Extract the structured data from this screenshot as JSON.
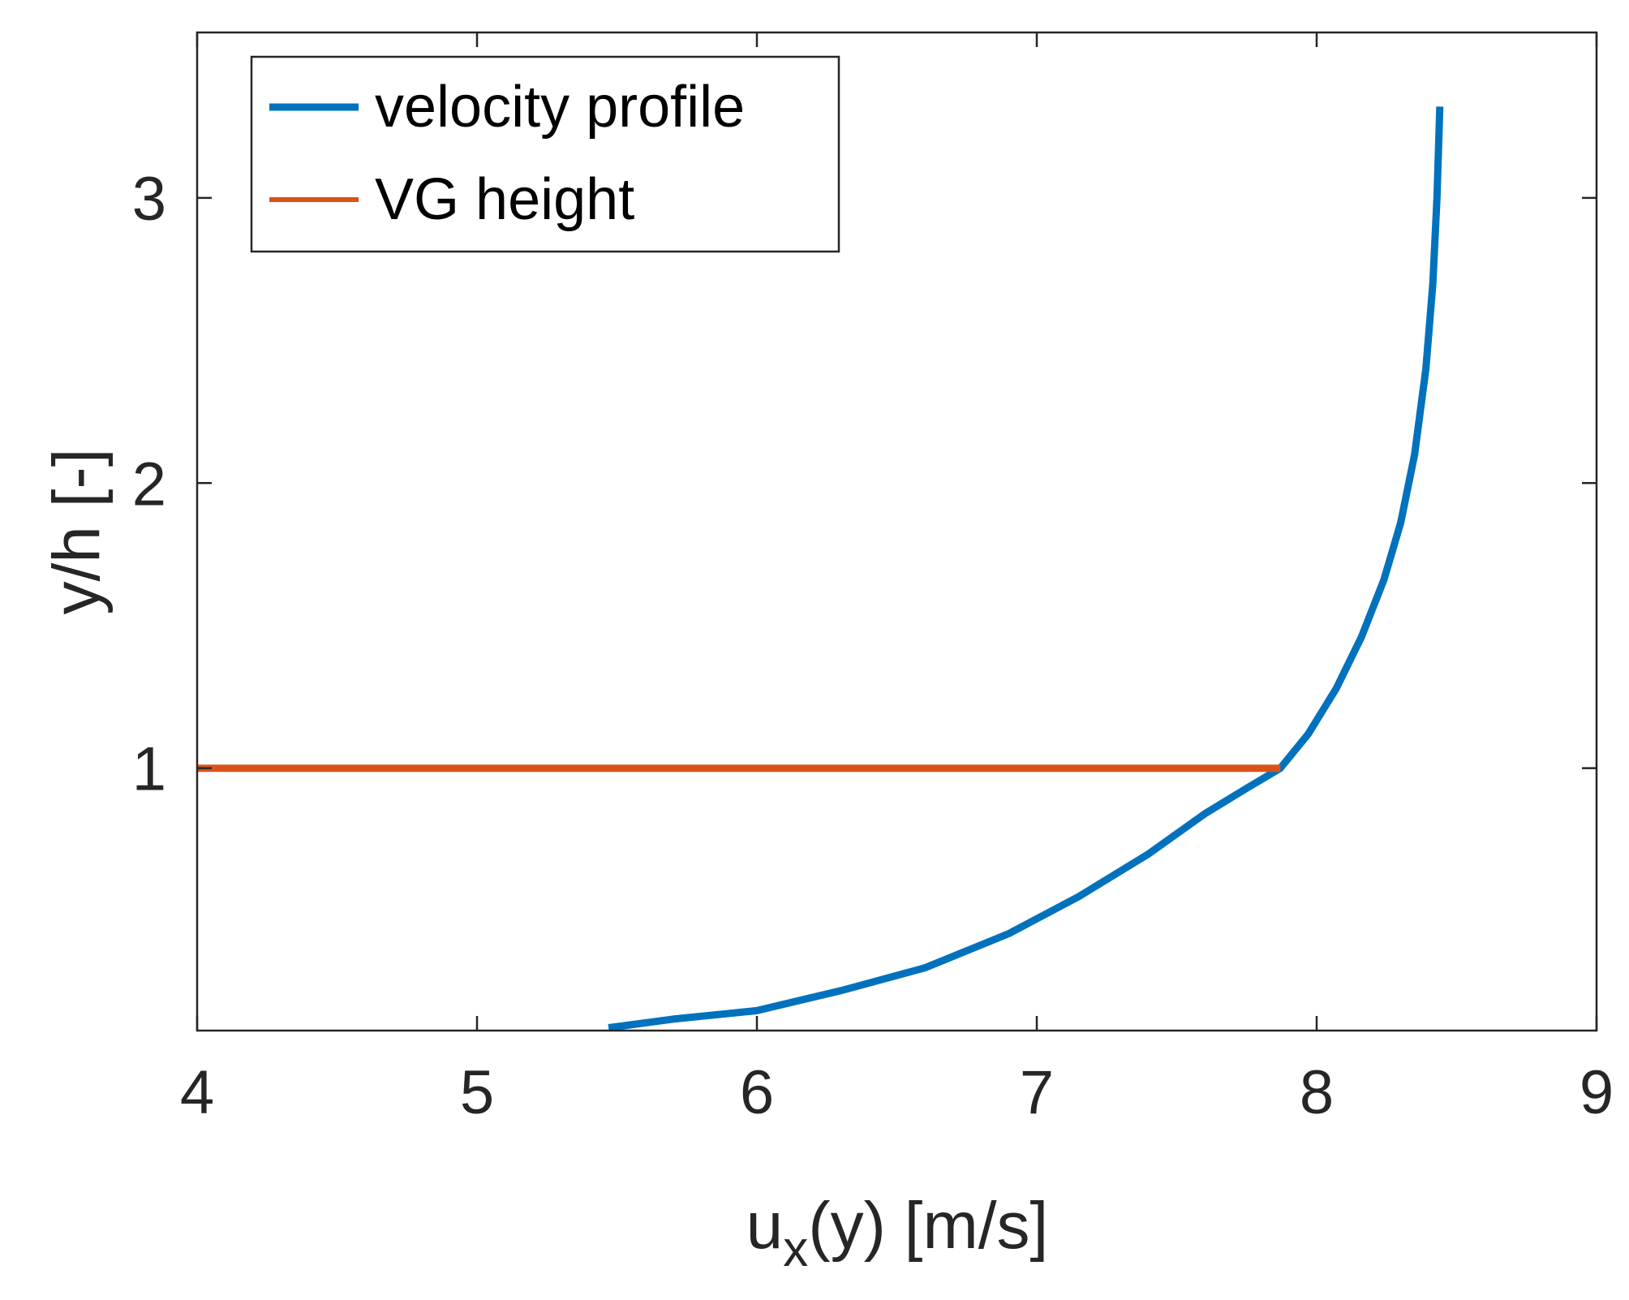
{
  "chart_data": {
    "type": "line",
    "title": "",
    "xlabel": {
      "main": "u",
      "subscript": "x",
      "rest": "(y) [m/s]"
    },
    "ylabel": "y/h [-]",
    "xlim": [
      4,
      9
    ],
    "ylim": [
      0.08,
      3.58
    ],
    "xticks": [
      "4",
      "5",
      "6",
      "7",
      "8",
      "9"
    ],
    "yticks": [
      "1",
      "2",
      "3"
    ],
    "grid": false,
    "legend_position": "top-left",
    "series": [
      {
        "name": "velocity profile",
        "color": "#0072BD",
        "x": [
          5.47,
          5.7,
          6.0,
          6.3,
          6.6,
          6.9,
          7.15,
          7.4,
          7.6,
          7.75,
          7.87,
          7.97,
          8.07,
          8.16,
          8.24,
          8.3,
          8.35,
          8.39,
          8.415,
          8.43,
          8.44
        ],
        "y": [
          0.09,
          0.12,
          0.15,
          0.22,
          0.3,
          0.42,
          0.55,
          0.7,
          0.84,
          0.93,
          1.0,
          1.12,
          1.28,
          1.46,
          1.66,
          1.86,
          2.1,
          2.4,
          2.7,
          3.0,
          3.32
        ]
      },
      {
        "name": "VG height",
        "color": "#D95319",
        "x": [
          4.0,
          7.87
        ],
        "y": [
          1.0,
          1.0
        ]
      }
    ]
  }
}
